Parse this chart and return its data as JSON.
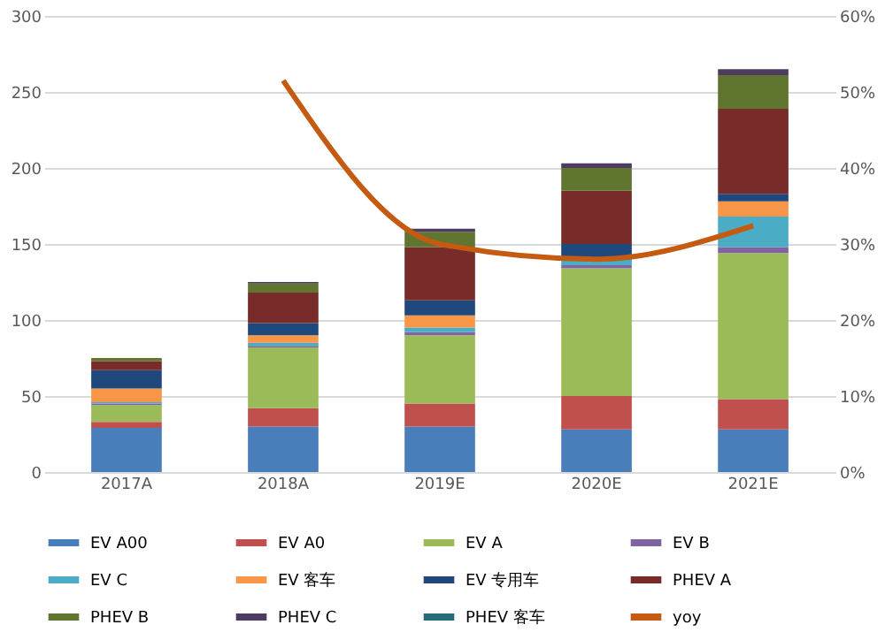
{
  "chart_data": {
    "type": "bar",
    "stacked": true,
    "categories": [
      "2017A",
      "2018A",
      "2019E",
      "2020E",
      "2021E"
    ],
    "series": [
      {
        "name": "EV A00",
        "color": "#4a7ebb",
        "values": [
          29,
          30,
          30,
          28,
          28
        ]
      },
      {
        "name": "EV A0",
        "color": "#c0504d",
        "values": [
          4,
          12,
          15,
          22,
          20
        ]
      },
      {
        "name": "EV A",
        "color": "#9bbb59",
        "values": [
          11,
          40,
          45,
          84,
          96
        ]
      },
      {
        "name": "EV B",
        "color": "#8064a2",
        "values": [
          1,
          1,
          2,
          2,
          4
        ]
      },
      {
        "name": "EV C",
        "color": "#4bacc6",
        "values": [
          1,
          2,
          3,
          4,
          20
        ]
      },
      {
        "name": "EV 客车",
        "color": "#f79646",
        "values": [
          9,
          5,
          8,
          0,
          10
        ]
      },
      {
        "name": "EV 专用车",
        "color": "#1f497d",
        "values": [
          12,
          8,
          10,
          10,
          5
        ]
      },
      {
        "name": "PHEV A",
        "color": "#772c2a",
        "values": [
          6,
          20,
          35,
          35,
          56
        ]
      },
      {
        "name": "PHEV B",
        "color": "#5f7530",
        "values": [
          2,
          6,
          10,
          15,
          22
        ]
      },
      {
        "name": "PHEV C",
        "color": "#4d3b62",
        "values": [
          0,
          1,
          2,
          3,
          4
        ]
      },
      {
        "name": "PHEV 客车",
        "color": "#276a7c",
        "values": [
          0,
          0,
          0,
          0,
          0
        ]
      },
      {
        "name": "yoy",
        "color": "#c55a11",
        "type": "line",
        "axis": "y2",
        "values": [
          null,
          51.5,
          30,
          28,
          32.4
        ]
      }
    ],
    "ylim": [
      0,
      300
    ],
    "yticks": [
      0,
      50,
      100,
      150,
      200,
      250,
      300
    ],
    "y2lim": [
      0,
      60
    ],
    "y2ticks": [
      {
        "value": 0,
        "label": "0%"
      },
      {
        "value": 10,
        "label": "10%"
      },
      {
        "value": 20,
        "label": "20%"
      },
      {
        "value": 30,
        "label": "30%"
      },
      {
        "value": 40,
        "label": "40%"
      },
      {
        "value": 50,
        "label": "50%"
      },
      {
        "value": 60,
        "label": "60%"
      }
    ],
    "grid": "y",
    "legend": "bottom"
  }
}
